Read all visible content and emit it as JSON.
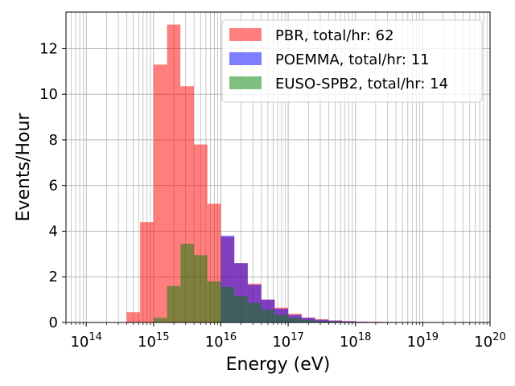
{
  "chart_data": {
    "type": "bar",
    "xscale": "log",
    "xlabel": "Energy (eV)",
    "ylabel": "Events/Hour",
    "xlim": [
      50000000000000.0,
      1e+20
    ],
    "ylim": [
      0,
      13.6
    ],
    "grid": true,
    "legend_position": "top-right",
    "x_ticks": [
      {
        "exp": 14,
        "base": "10",
        "sup": "14"
      },
      {
        "exp": 15,
        "base": "10",
        "sup": "15"
      },
      {
        "exp": 16,
        "base": "10",
        "sup": "16"
      },
      {
        "exp": 17,
        "base": "10",
        "sup": "17"
      },
      {
        "exp": 18,
        "base": "10",
        "sup": "18"
      },
      {
        "exp": 19,
        "base": "10",
        "sup": "19"
      },
      {
        "exp": 20,
        "base": "10",
        "sup": "20"
      }
    ],
    "y_ticks": [
      0,
      2,
      4,
      6,
      8,
      10,
      12
    ],
    "y_tick_labels": [
      "0",
      "2",
      "4",
      "6",
      "8",
      "10",
      "12"
    ],
    "bin_edges_log10": [
      14.6,
      14.8,
      15.0,
      15.2,
      15.4,
      15.6,
      15.8,
      16.0,
      16.2,
      16.4,
      16.6,
      16.8,
      17.0,
      17.2,
      17.4,
      17.6,
      17.8,
      18.0,
      18.2,
      18.4,
      18.6,
      18.8
    ],
    "series": [
      {
        "name": "PBR",
        "legend_label": "PBR, total/hr: 62",
        "color": "#ff0000",
        "alpha": 0.5,
        "values": [
          0.45,
          4.4,
          11.3,
          13.05,
          10.35,
          7.8,
          5.2,
          3.75,
          2.6,
          1.7,
          1.0,
          0.65,
          0.38,
          0.22,
          0.14,
          0.09,
          0.06,
          0.04,
          0.03,
          0.02,
          0.01
        ]
      },
      {
        "name": "POEMMA",
        "legend_label": "POEMMA, total/hr: 11",
        "color": "#0000ff",
        "alpha": 0.5,
        "values": [
          0,
          0,
          0,
          0,
          0,
          0,
          0,
          3.8,
          2.6,
          1.65,
          1.0,
          0.6,
          0.33,
          0.2,
          0.12,
          0.08,
          0.05,
          0.03,
          0.02,
          0.01,
          0.0
        ]
      },
      {
        "name": "EUSO-SPB2",
        "legend_label": "EUSO-SPB2, total/hr: 14",
        "color": "#008000",
        "alpha": 0.5,
        "values": [
          0,
          0,
          0.2,
          1.6,
          3.45,
          2.95,
          1.8,
          1.55,
          1.15,
          0.85,
          0.55,
          0.33,
          0.2,
          0.1,
          0.06,
          0.04,
          0.02,
          0.0,
          0.0,
          0.0,
          0.0
        ]
      }
    ]
  }
}
